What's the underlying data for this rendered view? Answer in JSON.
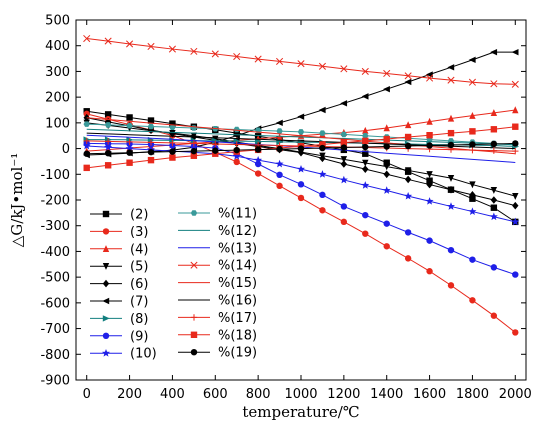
{
  "chart_data": {
    "type": "line",
    "xlabel": "temperature/℃",
    "ylabel": "△G/kJ•mol⁻¹",
    "xlim": [
      -50,
      2050
    ],
    "ylim": [
      -900,
      500
    ],
    "xticks": [
      "0",
      "200",
      "400",
      "600",
      "800",
      "1000",
      "1200",
      "1400",
      "1600",
      "1800",
      "2000"
    ],
    "yticks": [
      "500",
      "400",
      "300",
      "200",
      "100",
      "0",
      "-100",
      "-200",
      "-300",
      "-400",
      "-500",
      "-600",
      "-700",
      "-800",
      "-900"
    ],
    "grid": false,
    "legend_position": "bottom-left",
    "x": [
      0,
      100,
      200,
      300,
      400,
      500,
      600,
      700,
      800,
      900,
      1000,
      1100,
      1200,
      1300,
      1400,
      1500,
      1600,
      1700,
      1800,
      1900,
      2000
    ],
    "series": [
      {
        "name": "(2)",
        "color": "#000000",
        "marker": "square",
        "values": [
          145,
          133,
          121,
          109,
          97,
          85,
          73,
          60,
          48,
          35,
          22,
          9,
          -5,
          -20,
          -55,
          -90,
          -125,
          -160,
          -195,
          -230,
          -285
        ]
      },
      {
        "name": "(3)",
        "color": "#e8291c",
        "marker": "circle",
        "values": [
          135,
          114,
          93,
          72,
          51,
          20,
          -15,
          -52,
          -97,
          -145,
          -192,
          -240,
          -285,
          -331,
          -380,
          -427,
          -477,
          -532,
          -590,
          -650,
          -715
        ]
      },
      {
        "name": "(4)",
        "color": "#e8291c",
        "marker": "triangle-up",
        "values": [
          -10,
          -4,
          2,
          8,
          14,
          20,
          26,
          32,
          38,
          44,
          50,
          56,
          62,
          70,
          80,
          92,
          105,
          117,
          128,
          139,
          150
        ]
      },
      {
        "name": "(5)",
        "color": "#000000",
        "marker": "triangle-down",
        "values": [
          100,
          90,
          80,
          70,
          60,
          50,
          38,
          25,
          12,
          0,
          -14,
          -28,
          -42,
          -56,
          -70,
          -85,
          -100,
          -115,
          -140,
          -162,
          -185
        ]
      },
      {
        "name": "(6)",
        "color": "#000000",
        "marker": "diamond",
        "values": [
          120,
          104,
          88,
          72,
          58,
          45,
          32,
          20,
          8,
          -4,
          -16,
          -38,
          -60,
          -80,
          -100,
          -120,
          -140,
          -160,
          -180,
          -200,
          -222
        ]
      },
      {
        "name": "(7)",
        "color": "#000000",
        "marker": "triangle-left",
        "values": [
          -25,
          -22,
          -18,
          -12,
          -6,
          5,
          25,
          50,
          78,
          100,
          124,
          150,
          176,
          203,
          231,
          259,
          288,
          316,
          345,
          375,
          375
        ]
      },
      {
        "name": "(8)",
        "color": "#127f7f",
        "marker": "triangle-right",
        "values": [
          35,
          35,
          34,
          33,
          32,
          31,
          30,
          29,
          28,
          26,
          25,
          24,
          22,
          21,
          20,
          18,
          16,
          15,
          13,
          12,
          8
        ]
      },
      {
        "name": "(9)",
        "color": "#1f1fe8",
        "marker": "circle",
        "values": [
          20,
          19,
          18,
          16,
          12,
          8,
          2,
          -20,
          -60,
          -102,
          -139,
          -180,
          -225,
          -259,
          -292,
          -326,
          -358,
          -395,
          -432,
          -462,
          -490
        ]
      },
      {
        "name": "(10)",
        "color": "#1f1fe8",
        "marker": "star",
        "values": [
          10,
          5,
          0,
          -5,
          -10,
          -15,
          -20,
          -30,
          -45,
          -60,
          -80,
          -100,
          -122,
          -143,
          -163,
          -185,
          -205,
          -225,
          -245,
          -265,
          -285
        ]
      },
      {
        "name": "%(11)",
        "color": "#3a9a9a",
        "marker": "hexagon",
        "values": [
          95,
          92,
          89,
          86,
          83,
          80,
          77,
          74,
          71,
          68,
          65,
          60,
          55,
          50,
          45,
          40,
          35,
          30,
          25,
          20,
          15
        ]
      },
      {
        "name": "%(12)",
        "color": "#127f7f",
        "marker": "none",
        "values": [
          75,
          72,
          69,
          66,
          63,
          60,
          57,
          54,
          51,
          48,
          45,
          42,
          39,
          36,
          33,
          30,
          27,
          24,
          21,
          18,
          15
        ]
      },
      {
        "name": "%(13)",
        "color": "#1f1fe8",
        "marker": "none",
        "values": [
          52,
          48,
          44,
          40,
          36,
          31,
          26,
          21,
          16,
          11,
          6,
          0,
          -6,
          -12,
          -18,
          -24,
          -30,
          -36,
          -42,
          -48,
          -54
        ]
      },
      {
        "name": "%(14)",
        "color": "#e8291c",
        "marker": "cross",
        "values": [
          428,
          418,
          407,
          397,
          387,
          378,
          368,
          358,
          348,
          339,
          330,
          320,
          310,
          300,
          292,
          283,
          274,
          266,
          258,
          252,
          250
        ]
      },
      {
        "name": "%(15)",
        "color": "#e8291c",
        "marker": "none",
        "values": [
          120,
          113,
          106,
          99,
          92,
          85,
          78,
          71,
          64,
          57,
          50,
          43,
          36,
          29,
          22,
          15,
          8,
          1,
          -6,
          -13,
          -20
        ]
      },
      {
        "name": "%(16)",
        "color": "#000000",
        "marker": "none",
        "values": [
          60,
          57,
          54,
          51,
          48,
          45,
          42,
          39,
          36,
          33,
          30,
          27,
          24,
          21,
          18,
          15,
          12,
          9,
          6,
          3,
          0
        ]
      },
      {
        "name": "%(17)",
        "color": "#e8291c",
        "marker": "plus",
        "values": [
          30,
          28,
          26,
          24,
          22,
          20,
          18,
          16,
          14,
          12,
          10,
          8,
          6,
          4,
          2,
          0,
          -2,
          -4,
          -6,
          -8,
          -10
        ]
      },
      {
        "name": "%(18)",
        "color": "#e8291c",
        "marker": "square",
        "values": [
          -75,
          -65,
          -55,
          -45,
          -35,
          -28,
          -20,
          -12,
          -5,
          2,
          9,
          16,
          23,
          30,
          37,
          45,
          52,
          60,
          67,
          75,
          85
        ]
      },
      {
        "name": "%(19)",
        "color": "#000000",
        "marker": "circle",
        "values": [
          -20,
          -18,
          -16,
          -14,
          -12,
          -10,
          -8,
          -6,
          -4,
          -2,
          0,
          2,
          4,
          6,
          8,
          10,
          12,
          14,
          16,
          18,
          20
        ]
      }
    ]
  }
}
